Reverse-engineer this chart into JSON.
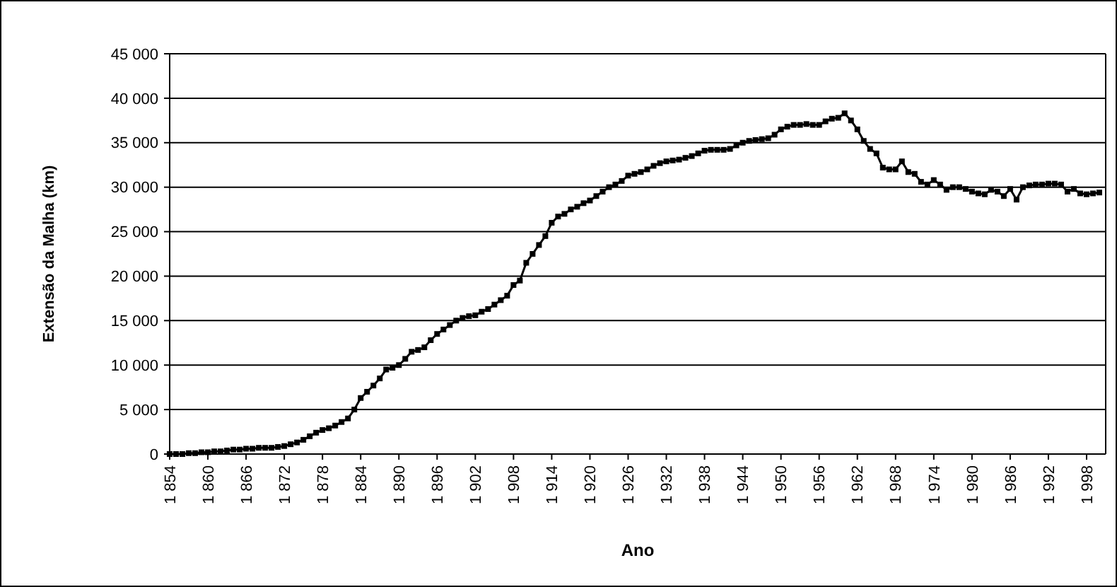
{
  "chart_data": {
    "type": "line",
    "xlabel": "Ano",
    "ylabel": "Extensão da Malha (km)",
    "x": [
      1854,
      1855,
      1856,
      1857,
      1858,
      1859,
      1860,
      1861,
      1862,
      1863,
      1864,
      1865,
      1866,
      1867,
      1868,
      1869,
      1870,
      1871,
      1872,
      1873,
      1874,
      1875,
      1876,
      1877,
      1878,
      1879,
      1880,
      1881,
      1882,
      1883,
      1884,
      1885,
      1886,
      1887,
      1888,
      1889,
      1890,
      1891,
      1892,
      1893,
      1894,
      1895,
      1896,
      1897,
      1898,
      1899,
      1900,
      1901,
      1902,
      1903,
      1904,
      1905,
      1906,
      1907,
      1908,
      1909,
      1910,
      1911,
      1912,
      1913,
      1914,
      1915,
      1916,
      1917,
      1918,
      1919,
      1920,
      1921,
      1922,
      1923,
      1924,
      1925,
      1926,
      1927,
      1928,
      1929,
      1930,
      1931,
      1932,
      1933,
      1934,
      1935,
      1936,
      1937,
      1938,
      1939,
      1940,
      1941,
      1942,
      1943,
      1944,
      1945,
      1946,
      1947,
      1948,
      1949,
      1950,
      1951,
      1952,
      1953,
      1954,
      1955,
      1956,
      1957,
      1958,
      1959,
      1960,
      1961,
      1962,
      1963,
      1964,
      1965,
      1966,
      1967,
      1968,
      1969,
      1970,
      1971,
      1972,
      1973,
      1974,
      1975,
      1976,
      1977,
      1978,
      1979,
      1980,
      1981,
      1982,
      1983,
      1984,
      1985,
      1986,
      1987,
      1988,
      1989,
      1990,
      1991,
      1992,
      1993,
      1994,
      1995,
      1996,
      1997,
      1998,
      1999,
      2000
    ],
    "series": [
      {
        "color": "#000000",
        "values": [
          0,
          0,
          0,
          100,
          100,
          200,
          200,
          300,
          300,
          400,
          500,
          500,
          600,
          600,
          700,
          700,
          700,
          800,
          900,
          1100,
          1300,
          1600,
          2000,
          2400,
          2700,
          2900,
          3200,
          3600,
          4000,
          5000,
          6300,
          7000,
          7700,
          8500,
          9500,
          9700,
          10000,
          10700,
          11500,
          11700,
          12000,
          12800,
          13500,
          14000,
          14500,
          15000,
          15300,
          15500,
          15600,
          16000,
          16300,
          16800,
          17300,
          17800,
          19000,
          19500,
          21500,
          22500,
          23500,
          24500,
          26000,
          26700,
          27000,
          27500,
          27800,
          28200,
          28500,
          29000,
          29500,
          30000,
          30300,
          30700,
          31300,
          31500,
          31700,
          32000,
          32400,
          32700,
          32900,
          33000,
          33100,
          33300,
          33500,
          33800,
          34100,
          34200,
          34200,
          34200,
          34300,
          34700,
          35000,
          35200,
          35300,
          35400,
          35500,
          35900,
          36500,
          36800,
          37000,
          37000,
          37100,
          37000,
          37000,
          37400,
          37700,
          37800,
          38300,
          37500,
          36500,
          35200,
          34300,
          33800,
          32200,
          32000,
          32000,
          32900,
          31700,
          31500,
          30600,
          30300,
          30800,
          30300,
          29700,
          30000,
          30000,
          29800,
          29500,
          29300,
          29200,
          29700,
          29500,
          29000,
          29800,
          28600,
          30000,
          30200,
          30300,
          30300,
          30400,
          30400,
          30300,
          29500,
          29800,
          29300,
          29200,
          29300,
          29400
        ]
      }
    ],
    "xlim": [
      1854,
      2001
    ],
    "xticks": [
      {
        "value": 1854,
        "label": "1 854"
      },
      {
        "value": 1860,
        "label": "1 860"
      },
      {
        "value": 1866,
        "label": "1 866"
      },
      {
        "value": 1872,
        "label": "1 872"
      },
      {
        "value": 1878,
        "label": "1 878"
      },
      {
        "value": 1884,
        "label": "1 884"
      },
      {
        "value": 1890,
        "label": "1 890"
      },
      {
        "value": 1896,
        "label": "1 896"
      },
      {
        "value": 1902,
        "label": "1 902"
      },
      {
        "value": 1908,
        "label": "1 908"
      },
      {
        "value": 1914,
        "label": "1 914"
      },
      {
        "value": 1920,
        "label": "1 920"
      },
      {
        "value": 1926,
        "label": "1 926"
      },
      {
        "value": 1932,
        "label": "1 932"
      },
      {
        "value": 1938,
        "label": "1 938"
      },
      {
        "value": 1944,
        "label": "1 944"
      },
      {
        "value": 1950,
        "label": "1 950"
      },
      {
        "value": 1956,
        "label": "1 956"
      },
      {
        "value": 1962,
        "label": "1 962"
      },
      {
        "value": 1968,
        "label": "1 968"
      },
      {
        "value": 1974,
        "label": "1 974"
      },
      {
        "value": 1980,
        "label": "1 980"
      },
      {
        "value": 1986,
        "label": "1 986"
      },
      {
        "value": 1992,
        "label": "1 992"
      },
      {
        "value": 1998,
        "label": "1 998"
      }
    ],
    "ylim": [
      0,
      45000
    ],
    "yticks": [
      0,
      {
        "value": 5000,
        "label": "5 000"
      },
      {
        "value": 10000,
        "label": "10 000"
      },
      {
        "value": 15000,
        "label": "15 000"
      },
      {
        "value": 20000,
        "label": "20 000"
      },
      {
        "value": 25000,
        "label": "25 000"
      },
      {
        "value": 30000,
        "label": "30 000"
      },
      {
        "value": 35000,
        "label": "35 000"
      },
      {
        "value": 40000,
        "label": "40 000"
      },
      {
        "value": 45000,
        "label": "45 000"
      }
    ],
    "grid": "y",
    "marker": "square",
    "line_style": "solid"
  }
}
